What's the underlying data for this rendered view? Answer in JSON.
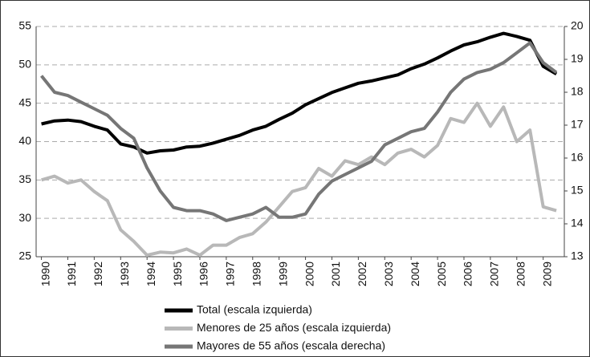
{
  "chart_data": {
    "type": "line",
    "x": [
      1990,
      1990.5,
      1991,
      1991.5,
      1992,
      1992.5,
      1993,
      1993.5,
      1994,
      1994.5,
      1995,
      1995.5,
      1996,
      1996.5,
      1997,
      1997.5,
      1998,
      1998.5,
      1999,
      1999.5,
      2000,
      2000.5,
      2001,
      2001.5,
      2002,
      2002.5,
      2003,
      2003.5,
      2004,
      2004.5,
      2005,
      2005.5,
      2006,
      2006.5,
      2007,
      2007.5,
      2008,
      2008.5,
      2009,
      2009.5
    ],
    "series": [
      {
        "name": "Total (escala izquierda)",
        "color": "#000000",
        "axis": "y",
        "values": [
          42.3,
          42.7,
          42.8,
          42.6,
          42.0,
          41.5,
          39.7,
          39.3,
          38.5,
          38.8,
          38.9,
          39.3,
          39.4,
          39.8,
          40.3,
          40.8,
          41.5,
          42.0,
          42.9,
          43.7,
          44.8,
          45.6,
          46.4,
          47.0,
          47.6,
          47.9,
          48.3,
          48.7,
          49.5,
          50.1,
          50.9,
          51.8,
          52.6,
          53.0,
          53.6,
          54.1,
          53.7,
          53.2,
          49.8,
          48.8
        ]
      },
      {
        "name": "Menores de 25 años (escala izquierda)",
        "color": "#b8b8b8",
        "axis": "y",
        "values": [
          35.0,
          35.5,
          34.6,
          35.0,
          33.5,
          32.3,
          28.5,
          27.0,
          25.2,
          25.6,
          25.5,
          26.0,
          25.2,
          26.5,
          26.5,
          27.5,
          28.0,
          29.5,
          31.5,
          33.5,
          34.0,
          36.5,
          35.5,
          37.5,
          37.0,
          38.0,
          37.0,
          38.5,
          39.0,
          38.0,
          39.5,
          43.0,
          42.5,
          45.0,
          42.0,
          44.5,
          40.0,
          41.5,
          31.5,
          31.0
        ]
      },
      {
        "name": "Mayores de 55 años (escala derecha)",
        "color": "#767676",
        "axis": "y2",
        "values": [
          18.5,
          18.0,
          17.9,
          17.7,
          17.5,
          17.3,
          16.9,
          16.6,
          15.7,
          15.0,
          14.5,
          14.4,
          14.4,
          14.3,
          14.1,
          14.2,
          14.3,
          14.5,
          14.2,
          14.2,
          14.3,
          14.9,
          15.3,
          15.5,
          15.7,
          15.9,
          16.4,
          16.6,
          16.8,
          16.9,
          17.4,
          18.0,
          18.4,
          18.6,
          18.7,
          18.9,
          19.2,
          19.5,
          18.9,
          18.6
        ]
      }
    ],
    "xlim": [
      1989.8,
      2009.8
    ],
    "xticks": [
      1990,
      1991,
      1992,
      1993,
      1994,
      1995,
      1996,
      1997,
      1998,
      1999,
      2000,
      2001,
      2002,
      2003,
      2004,
      2005,
      2006,
      2007,
      2008,
      2009
    ],
    "ylim": [
      25,
      55
    ],
    "yticks": [
      25,
      30,
      35,
      40,
      45,
      50,
      55
    ],
    "y2lim": [
      13,
      20
    ],
    "y2ticks": [
      13,
      14,
      15,
      16,
      17,
      18,
      19,
      20
    ],
    "grid": true
  }
}
